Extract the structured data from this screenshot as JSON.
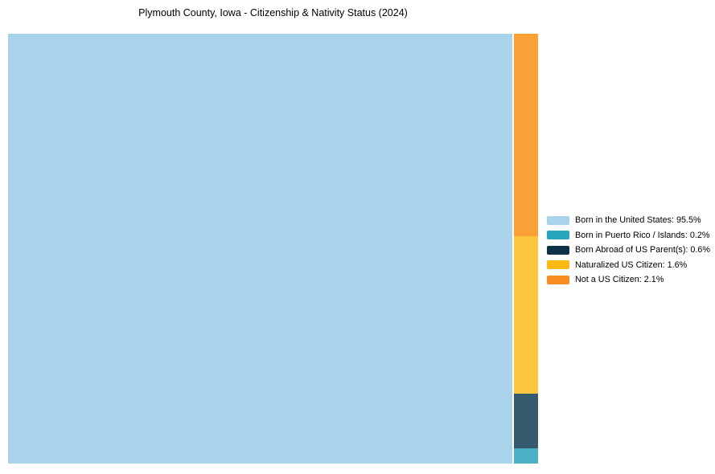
{
  "chart_data": {
    "type": "treemap",
    "title": "Plymouth County, Iowa - Citizenship & Nativity Status (2024)",
    "categories": [
      "Born in the United States",
      "Born in Puerto Rico / Islands",
      "Born Abroad of US Parent(s)",
      "Naturalized US Citizen",
      "Not a US Citizen"
    ],
    "values": [
      95.5,
      0.2,
      0.6,
      1.6,
      2.1
    ],
    "unit": "%",
    "legend_position": "right",
    "background_color": "#ffffff"
  },
  "treemap": {
    "cells": [
      {
        "label": "Born in the United States",
        "value": 95.5,
        "color": "#a8d3ea"
      },
      {
        "label": "Not a US Citizen",
        "value": 2.1,
        "color": "#f9a134"
      },
      {
        "label": "Naturalized US Citizen",
        "value": 1.6,
        "color": "#fdc63c"
      },
      {
        "label": "Born Abroad of US Parent(s)",
        "value": 0.6,
        "color": "#35596d"
      },
      {
        "label": "Born in Puerto Rico / Islands",
        "value": 0.2,
        "color": "#4ab2c5"
      }
    ]
  },
  "legend": {
    "items": [
      {
        "label": "Born in the United States: 95.5%",
        "color": "#a8d3ea"
      },
      {
        "label": "Born in Puerto Rico / Islands: 0.2%",
        "color": "#2aa5be"
      },
      {
        "label": "Born Abroad of US Parent(s): 0.6%",
        "color": "#0d3145"
      },
      {
        "label": "Naturalized US Citizen: 1.6%",
        "color": "#fcb813"
      },
      {
        "label": "Not a US Citizen: 2.1%",
        "color": "#f78d1e"
      }
    ]
  }
}
